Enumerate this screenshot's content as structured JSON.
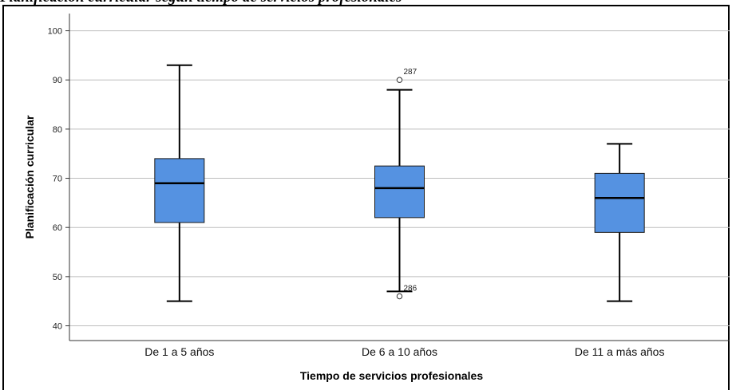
{
  "caption": "Planificación curricular según tiempo de servicios profesionales",
  "chart_data": {
    "type": "boxplot",
    "title": "",
    "xlabel": "Tiempo de servicios profesionales",
    "ylabel": "Planificación curricular",
    "ylim": [
      37,
      103.5
    ],
    "yticks": [
      40,
      50,
      60,
      70,
      80,
      90,
      100
    ],
    "grid": true,
    "categories": [
      "De 1 a 5 años",
      "De 6 a 10 años",
      "De 11 a más años"
    ],
    "boxes": [
      {
        "category": "De 1 a 5 años",
        "whisker_low": 45,
        "q1": 61,
        "median": 69,
        "q3": 74,
        "whisker_high": 93,
        "outliers": []
      },
      {
        "category": "De 6 a 10 años",
        "whisker_low": 47,
        "q1": 62,
        "median": 68,
        "q3": 72.5,
        "whisker_high": 88,
        "outliers": [
          {
            "value": 90,
            "label": "287"
          },
          {
            "value": 46,
            "label": "286"
          }
        ]
      },
      {
        "category": "De 11 a más años",
        "whisker_low": 45,
        "q1": 59,
        "median": 66,
        "q3": 71,
        "whisker_high": 77,
        "outliers": []
      }
    ],
    "colors": {
      "box_fill": "#5592e1",
      "box_stroke": "#1a1a1a",
      "grid": "#bdbdbd",
      "axis": "#333333"
    }
  }
}
